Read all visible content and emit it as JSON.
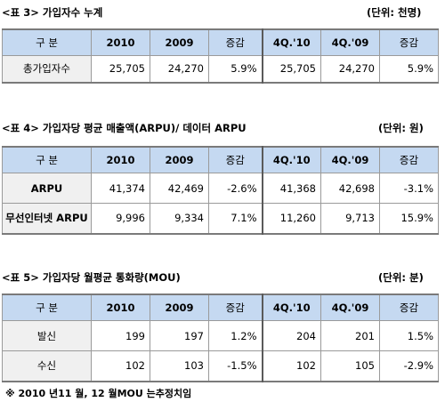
{
  "t3": {
    "title": "<표 3> 가입자수 누계",
    "unit": "(단위: 천명)",
    "headers": [
      "구 분",
      "2010",
      "2009",
      "증감",
      "4Q.'10",
      "4Q.'09",
      "증감"
    ],
    "rows": [
      {
        "label": "총가입자수",
        "cells": [
          "25,705",
          "24,270",
          "5.9%",
          "25,705",
          "24,270",
          "5.9%"
        ]
      }
    ]
  },
  "t4": {
    "title": "<표 4> 가입자당 평균 매출액(ARPU)/ 데이터 ARPU",
    "unit": "(단위: 원)",
    "headers": [
      "구 분",
      "2010",
      "2009",
      "증감",
      "4Q.'10",
      "4Q.'09",
      "증감"
    ],
    "rows": [
      {
        "label": "ARPU",
        "cells": [
          "41,374",
          "42,469",
          "-2.6%",
          "41,368",
          "42,698",
          "-3.1%"
        ]
      },
      {
        "label": "무선인터넷 ARPU",
        "cells": [
          "9,996",
          "9,334",
          "7.1%",
          "11,260",
          "9,713",
          "15.9%"
        ]
      }
    ]
  },
  "t5": {
    "title": "<표 5> 가입자당 월평균 통화량(MOU)",
    "unit": "(단위: 분)",
    "headers": [
      "구 분",
      "2010",
      "2009",
      "증감",
      "4Q.'10",
      "4Q.'09",
      "증감"
    ],
    "rows": [
      {
        "label": "발신",
        "cells": [
          "199",
          "197",
          "1.2%",
          "204",
          "201",
          "1.5%"
        ]
      },
      {
        "label": "수신",
        "cells": [
          "102",
          "103",
          "-1.5%",
          "102",
          "105",
          "-2.9%"
        ]
      }
    ]
  },
  "footnote": "※ 2010 년11 월, 12 월MOU 는추정치임"
}
